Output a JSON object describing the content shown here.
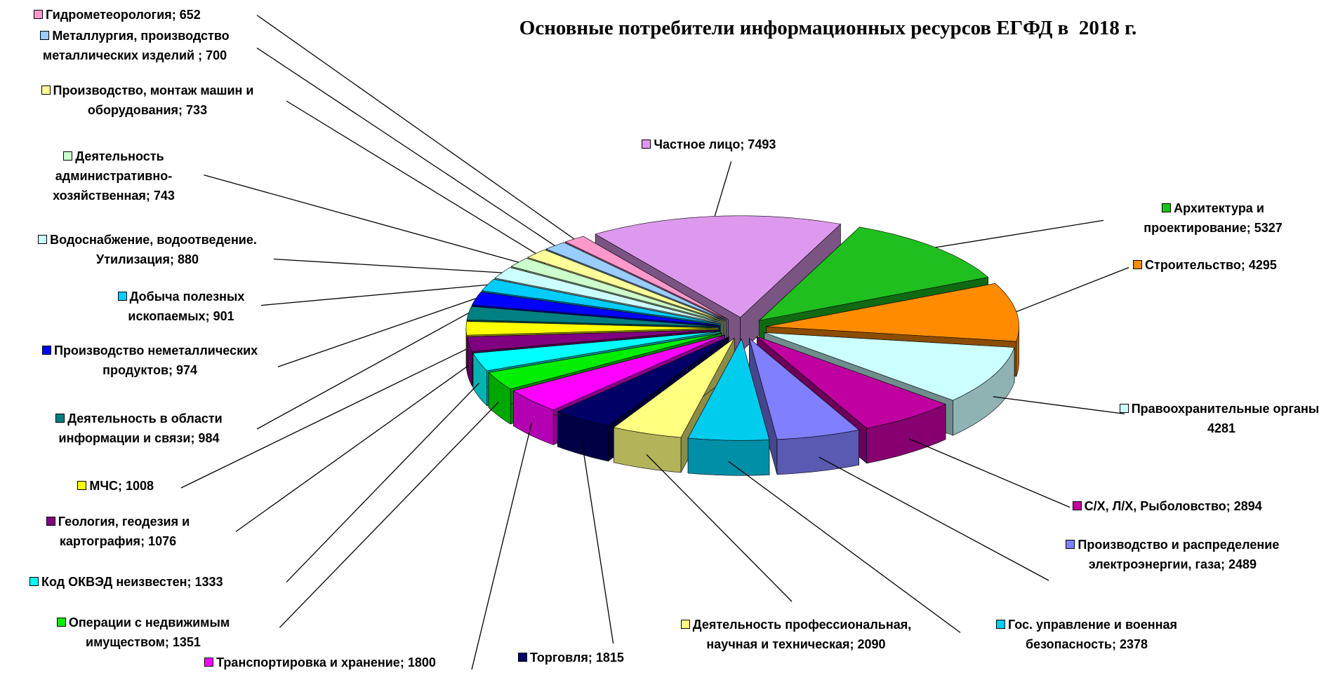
{
  "chart_data": {
    "type": "pie",
    "title": "Основные потребители информационных ресурсов ЕГФД в  2018 г.",
    "categories": [
      "Частное лицо",
      "Архитектура и проектирование",
      "Строительство",
      "Правоохранительные органы",
      "С/Х, Л/Х, Рыболовство",
      "Производство и распределение электроэнергии, газа",
      "Гос. управление и военная безопасность",
      "Деятельность профессиональная, научная и техническая",
      "Торговля",
      "Транспортировка и хранение",
      "Операции с недвижимым имуществом",
      "Код ОКВЭД неизвестен",
      "Геология, геодезия и картография",
      "МЧС",
      "Деятельность в области информации и связи",
      "Производство неметаллических продуктов",
      "Добыча полезных ископаемых",
      "Водоснабжение, водоотведение. Утилизация",
      "Деятельность административно-хозяйственная",
      "Производство, монтаж машин и оборудования",
      "Металлургия, производство металлических изделий ",
      "Гидрометеорология"
    ],
    "values": [
      7493,
      5327,
      4295,
      4281,
      2894,
      2489,
      2378,
      2090,
      1815,
      1800,
      1351,
      1333,
      1076,
      1008,
      984,
      974,
      901,
      880,
      743,
      733,
      700,
      652
    ],
    "value_labels": [
      "Частное лицо; 7493",
      "Архитектура и проектирование; 5327",
      "Строительство; 4295",
      "Правоохранительные органы; 4281",
      "С/Х, Л/Х, Рыболовство; 2894",
      "Производство и распределение электроэнергии, газа; 2489",
      "Гос. управление и военная безопасность; 2378",
      "Деятельность профессиональная, научная и техническая; 2090",
      "Торговля; 1815",
      "Транспортировка и хранение; 1800",
      "Операции с недвижимым имуществом; 1351",
      "Код ОКВЭД неизвестен; 1333",
      "Геология, геодезия и картография; 1076",
      "МЧС; 1008",
      "Деятельность в области информации и связи; 984",
      "Производство неметаллических продуктов; 974",
      "Добыча полезных ископаемых; 901",
      "Водоснабжение, водоотведение. Утилизация; 880",
      "Деятельность административно-хозяйственная; 743",
      "Производство, монтаж машин и оборудования; 733",
      "Металлургия, производство металлических изделий ; 700",
      "Гидрометеорология; 652"
    ],
    "colors": [
      "#dd99ee",
      "#1fbf1f",
      "#ff8c00",
      "#ccffff",
      "#c000a0",
      "#8080ff",
      "#00ccee",
      "#ffff80",
      "#000066",
      "#ff00ff",
      "#00ee00",
      "#00ffff",
      "#800080",
      "#ffff00",
      "#008080",
      "#0000ff",
      "#00ccff",
      "#ccffff",
      "#ccffcc",
      "#ffff99",
      "#99ccff",
      "#ff99cc"
    ]
  }
}
